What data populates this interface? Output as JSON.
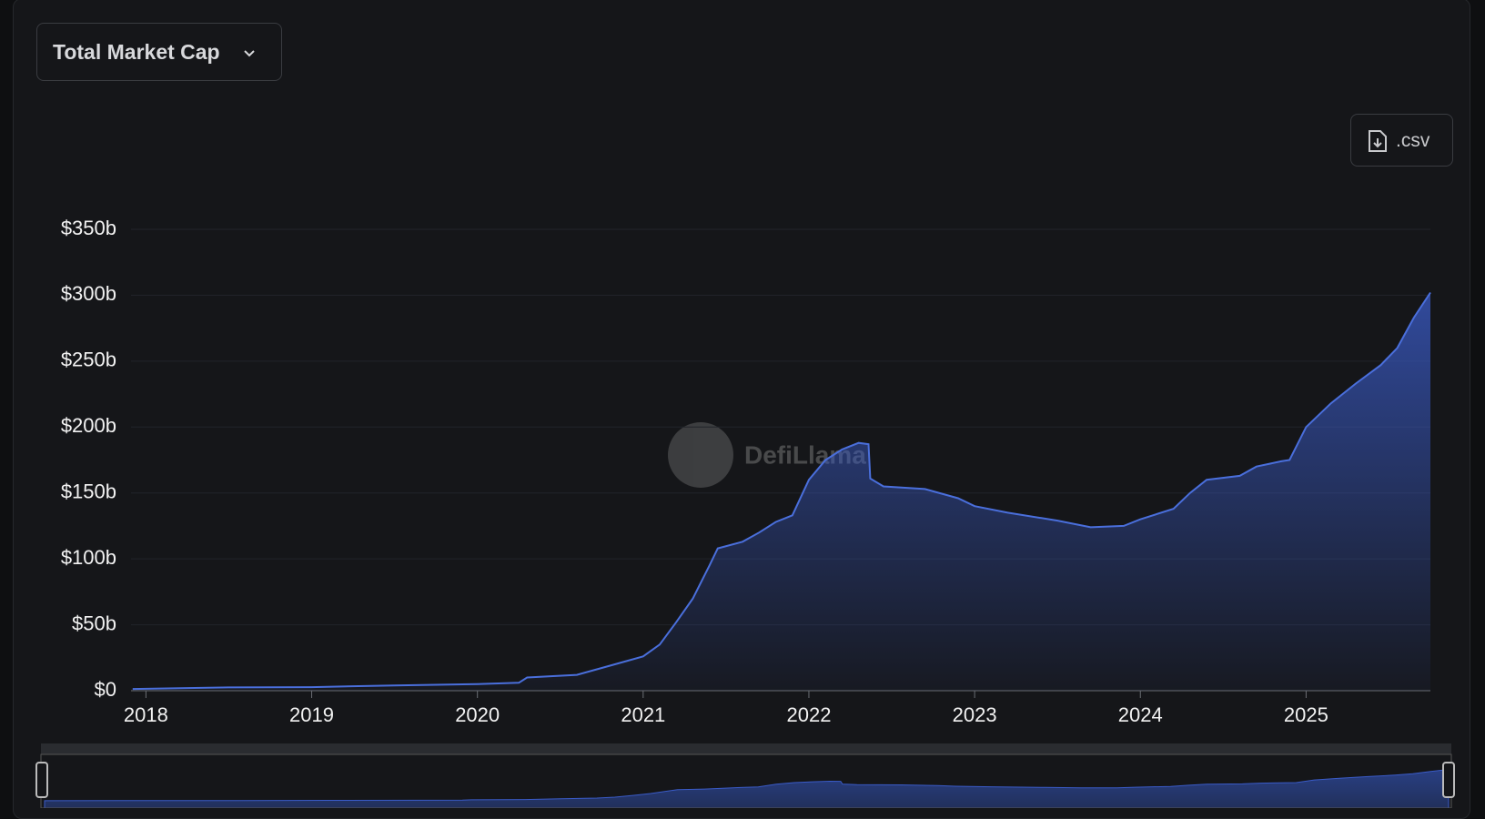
{
  "header": {
    "metric_selector": "Total Market Cap",
    "csv_button": ".csv"
  },
  "watermark": "DefiLlama",
  "chart_data": {
    "type": "area",
    "x": [
      2017.92,
      2018.5,
      2019.0,
      2019.5,
      2020.0,
      2020.25,
      2020.3,
      2020.6,
      2020.8,
      2021.0,
      2021.1,
      2021.2,
      2021.3,
      2021.4,
      2021.45,
      2021.6,
      2021.7,
      2021.8,
      2021.9,
      2022.0,
      2022.1,
      2022.2,
      2022.3,
      2022.36,
      2022.37,
      2022.45,
      2022.7,
      2022.9,
      2023.0,
      2023.2,
      2023.5,
      2023.7,
      2023.9,
      2024.0,
      2024.2,
      2024.3,
      2024.4,
      2024.6,
      2024.7,
      2024.85,
      2024.9,
      2025.0,
      2025.15,
      2025.3,
      2025.45,
      2025.55,
      2025.65,
      2025.75
    ],
    "series": [
      {
        "color": "#4a6fdc",
        "values": [
          1.3,
          2.5,
          2.7,
          4,
          5,
          6,
          10,
          12,
          19,
          26,
          35,
          52,
          70,
          95,
          108,
          113,
          120,
          128,
          133,
          160,
          175,
          183,
          188,
          187,
          161,
          155,
          153,
          146,
          140,
          135,
          129,
          124,
          125,
          130,
          138,
          150,
          160,
          163,
          170,
          174,
          175,
          200,
          218,
          233,
          247,
          260,
          283,
          302
        ]
      }
    ],
    "xlim": [
      2017.91,
      2025.75
    ],
    "xticks": [
      2018,
      2019,
      2020,
      2021,
      2022,
      2023,
      2024,
      2025
    ],
    "ylim": [
      0,
      350
    ],
    "yticks": [
      {
        "value": 0,
        "label": "$0"
      },
      {
        "value": 50,
        "label": "$50b"
      },
      {
        "value": 100,
        "label": "$100b"
      },
      {
        "value": 150,
        "label": "$150b"
      },
      {
        "value": 200,
        "label": "$200b"
      },
      {
        "value": 250,
        "label": "$250b"
      },
      {
        "value": 300,
        "label": "$300b"
      },
      {
        "value": 350,
        "label": "$350b"
      }
    ],
    "grid": true
  }
}
